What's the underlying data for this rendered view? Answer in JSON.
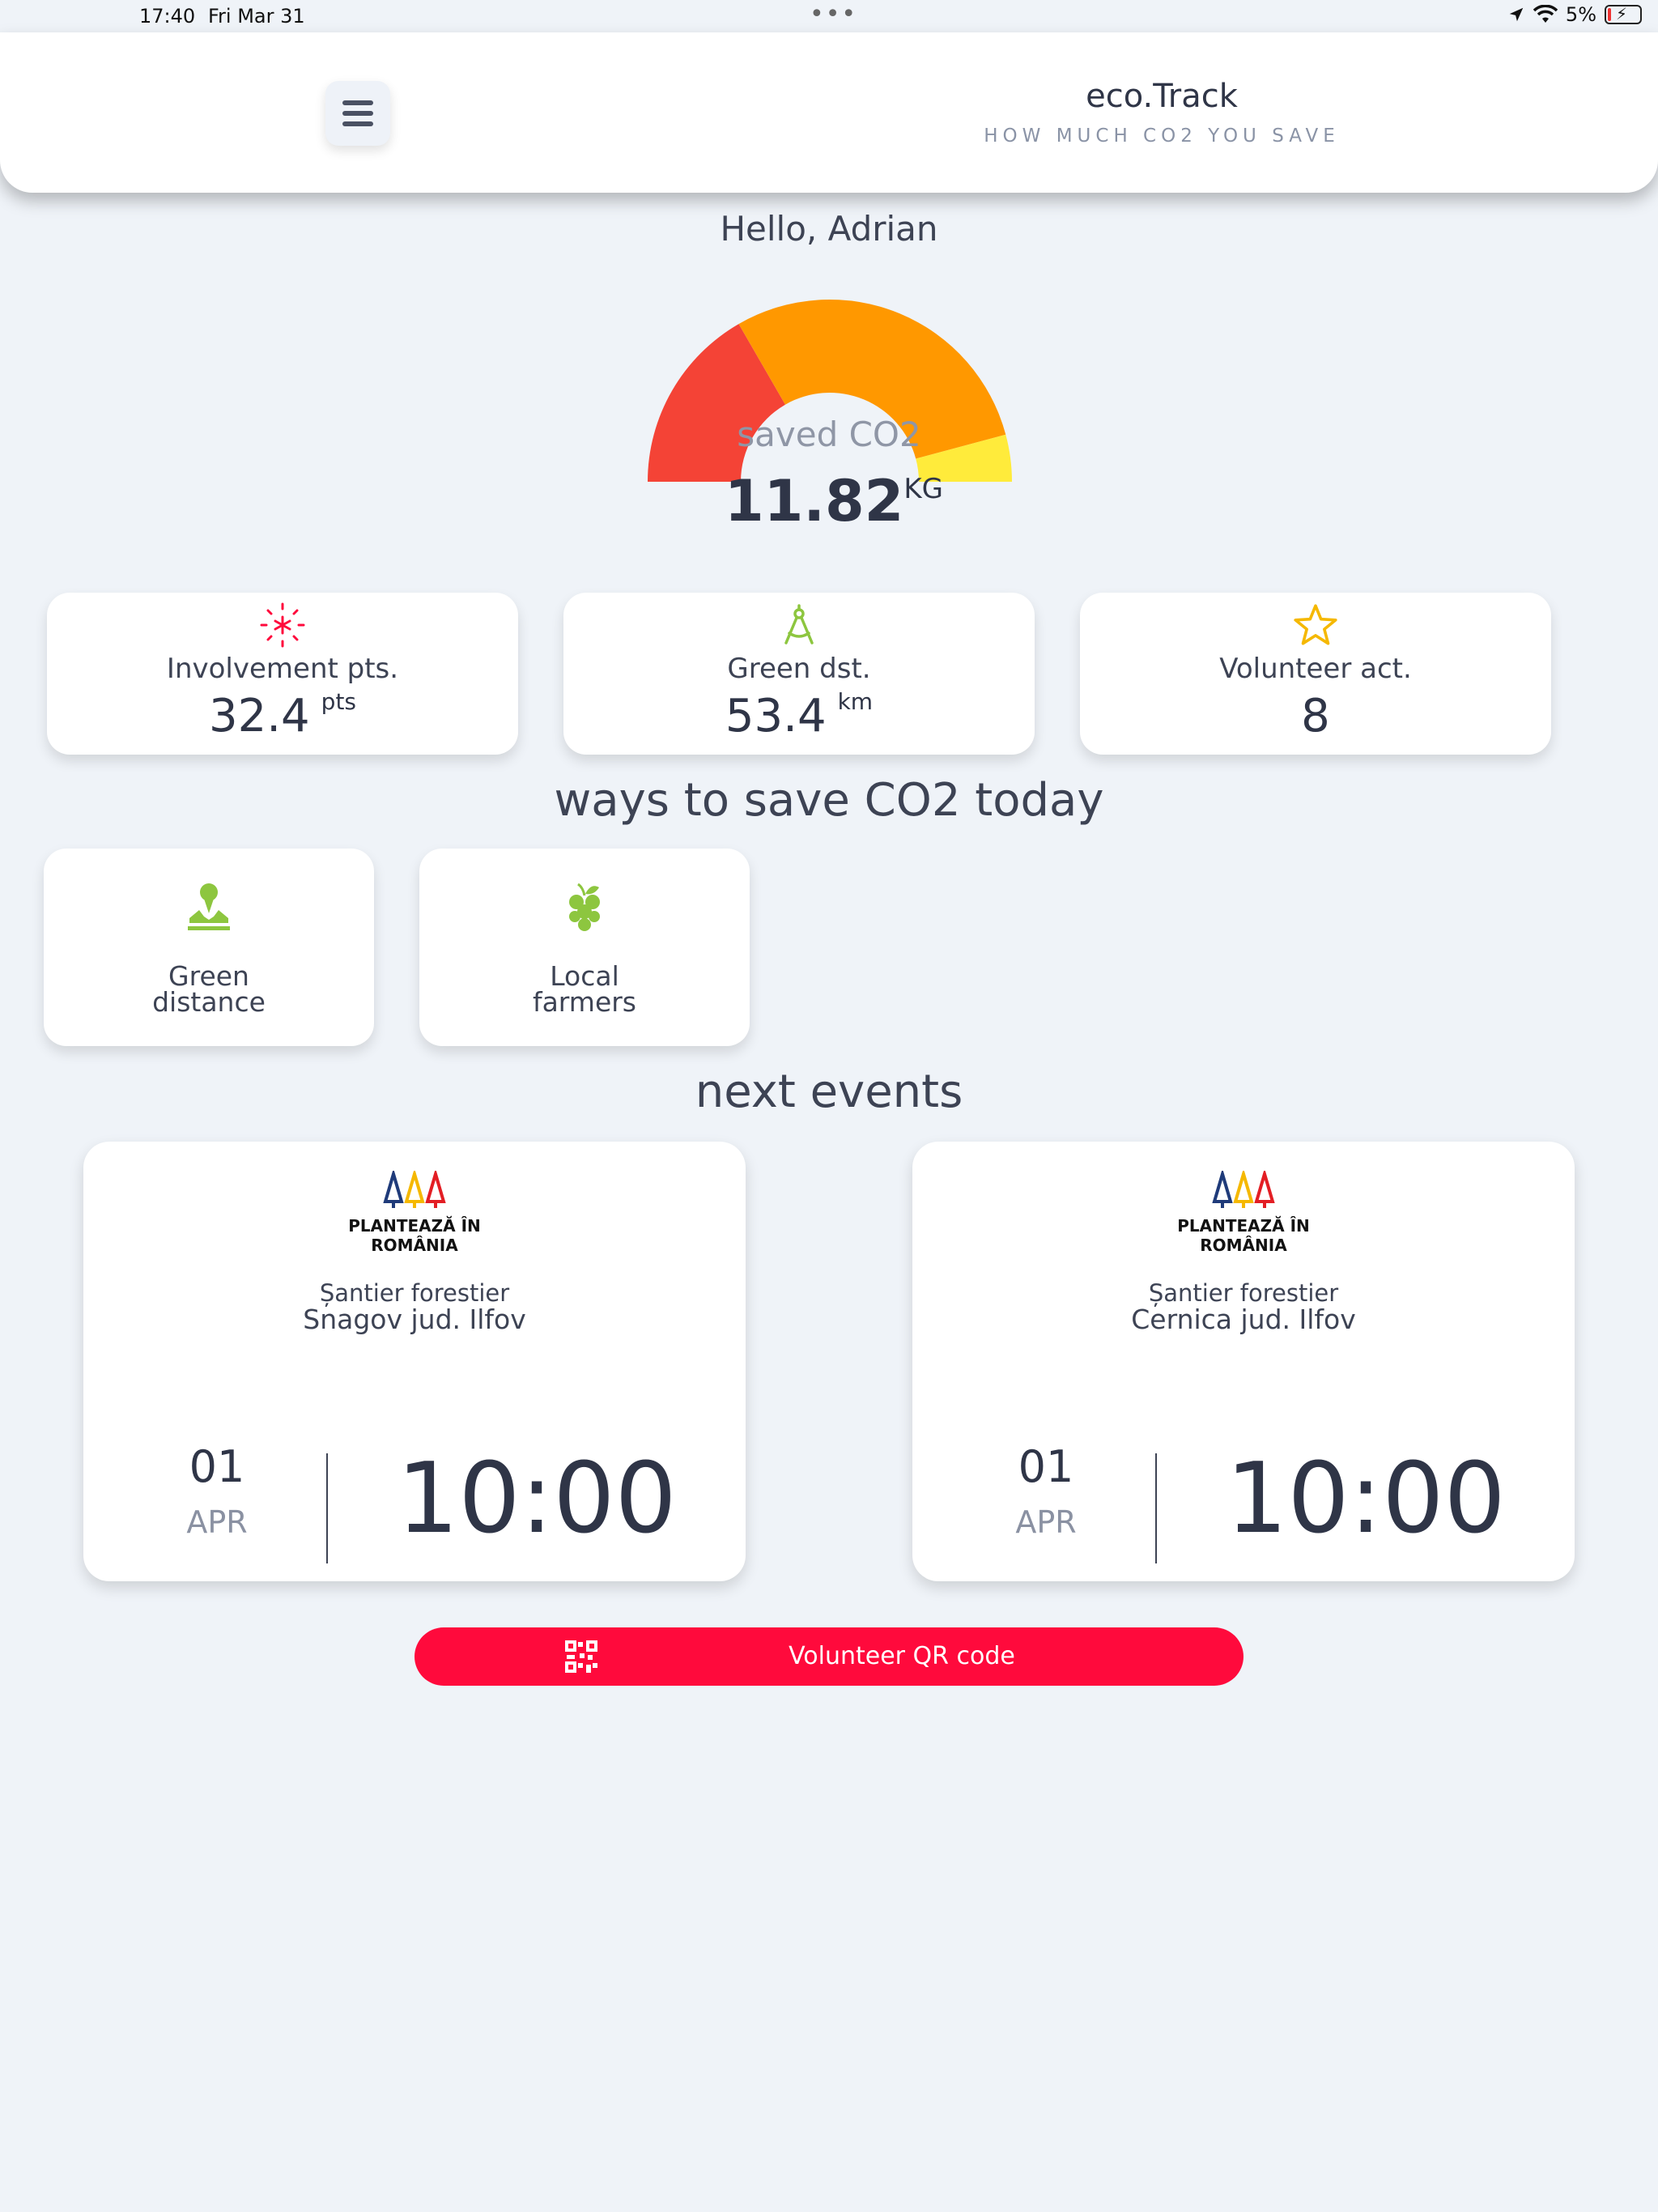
{
  "status_bar": {
    "time": "17:40",
    "date": "Fri Mar 31",
    "battery": "5%"
  },
  "header": {
    "title": "eco.Track",
    "subtitle": "HOW MUCH CO2 YOU SAVE"
  },
  "greeting": "Hello, Adrian",
  "gauge": {
    "label": "saved CO2",
    "value": "11.82",
    "unit": "KG"
  },
  "stats": [
    {
      "label": "Involvement pts.",
      "value": "32.4",
      "unit": "pts",
      "icon": "sparkle-icon",
      "color": "#ff0a3c"
    },
    {
      "label": "Green dst.",
      "value": "53.4",
      "unit": "km",
      "icon": "compass-icon",
      "color": "#8dc63f"
    },
    {
      "label": "Volunteer act.",
      "value": "8",
      "unit": "",
      "icon": "star-icon",
      "color": "#f5b800"
    }
  ],
  "ways": {
    "title": "ways to save CO2 today",
    "items": [
      {
        "line1": "Green",
        "line2": "distance",
        "icon": "map-pin-icon"
      },
      {
        "line1": "Local",
        "line2": "farmers",
        "icon": "grapes-icon"
      }
    ]
  },
  "events": {
    "title": "next events",
    "items": [
      {
        "logo_line1": "PLANTEAZĂ ÎN",
        "logo_line2": "ROMÂNIA",
        "place_line1": "Șantier forestier",
        "place_line2": "Snagov jud. Ilfov",
        "day": "01",
        "month": "APR",
        "time": "10:00"
      },
      {
        "logo_line1": "PLANTEAZĂ ÎN",
        "logo_line2": "ROMÂNIA",
        "place_line1": "Șantier forestier",
        "place_line2": "Cernica jud. Ilfov",
        "day": "01",
        "month": "APR",
        "time": "10:00"
      }
    ]
  },
  "qr_button": {
    "label": "Volunteer QR code",
    "icon": "qr-code-icon",
    "color": "#ff0a3c"
  },
  "colors": {
    "gauge_red": "#f44336",
    "gauge_orange": "#ff9800",
    "gauge_yellow": "#ffeb3b",
    "background": "#eff3f8"
  }
}
